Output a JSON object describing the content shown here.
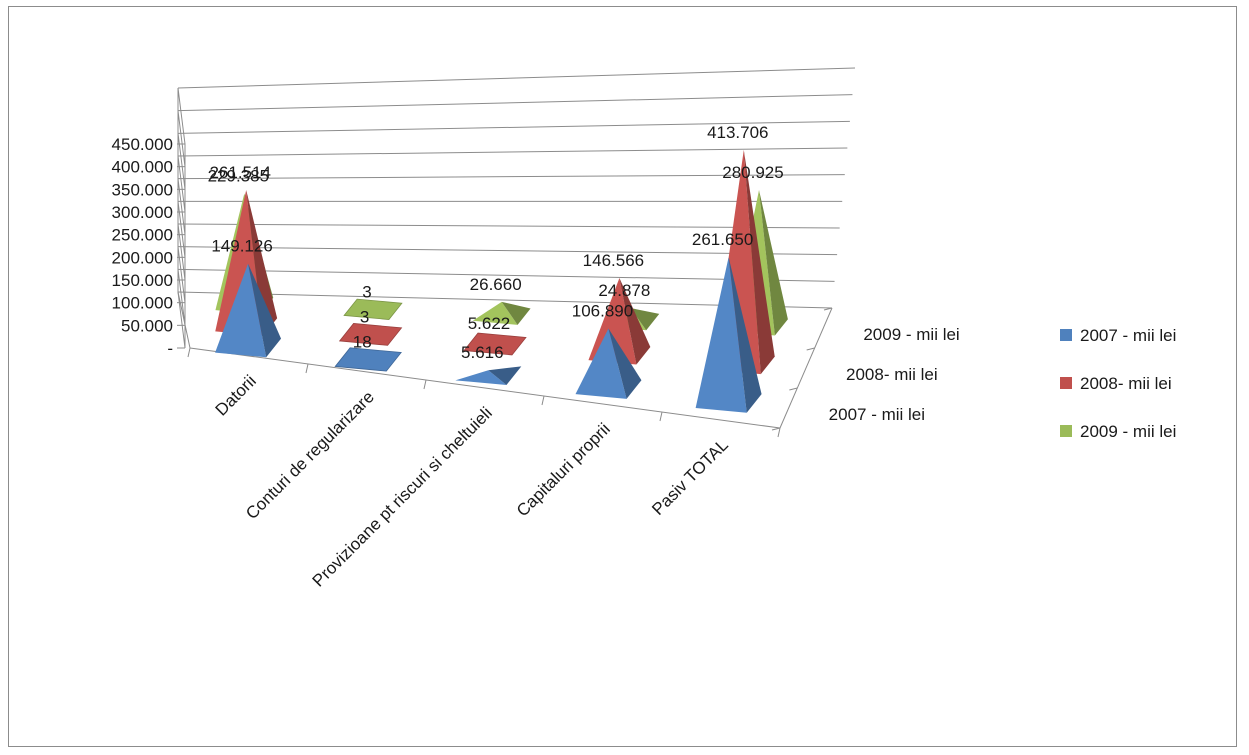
{
  "chart_data": {
    "type": "bar",
    "subtype": "3d-pyramid",
    "title": "",
    "xlabel": "",
    "ylabel": "",
    "ylim": [
      0,
      450000
    ],
    "y_ticks": [
      "-",
      "50.000",
      "100.000",
      "150.000",
      "200.000",
      "250.000",
      "300.000",
      "350.000",
      "400.000",
      "450.000"
    ],
    "categories": [
      "Datorii",
      "Conturi de regularizare",
      "Provizioane pt riscuri si cheltuieli",
      "Capitaluri proprii",
      "Pasiv TOTAL"
    ],
    "depth_labels": [
      "2007 - mii lei",
      "2008- mii lei",
      "2009 - mii lei"
    ],
    "legend_position": "right",
    "grid": true,
    "series": [
      {
        "name": "2007 - mii lei",
        "color": "#4f81bd",
        "values": [
          149126,
          18,
          5616,
          106890,
          261650
        ],
        "labels": [
          "149.126",
          "18",
          "5.616",
          "106.890",
          "261.650"
        ]
      },
      {
        "name": "2008- mii lei",
        "color": "#c0504d",
        "values": [
          261514,
          3,
          5622,
          146566,
          413706
        ],
        "labels": [
          "261.514",
          "3",
          "5.622",
          "146.566",
          "413.706"
        ]
      },
      {
        "name": "2009 - mii lei",
        "color": "#9bbb59",
        "values": [
          229385,
          3,
          26660,
          24878,
          280925
        ],
        "labels": [
          "229.385",
          "3",
          "26.660",
          "24.878",
          "280.925"
        ]
      }
    ]
  }
}
